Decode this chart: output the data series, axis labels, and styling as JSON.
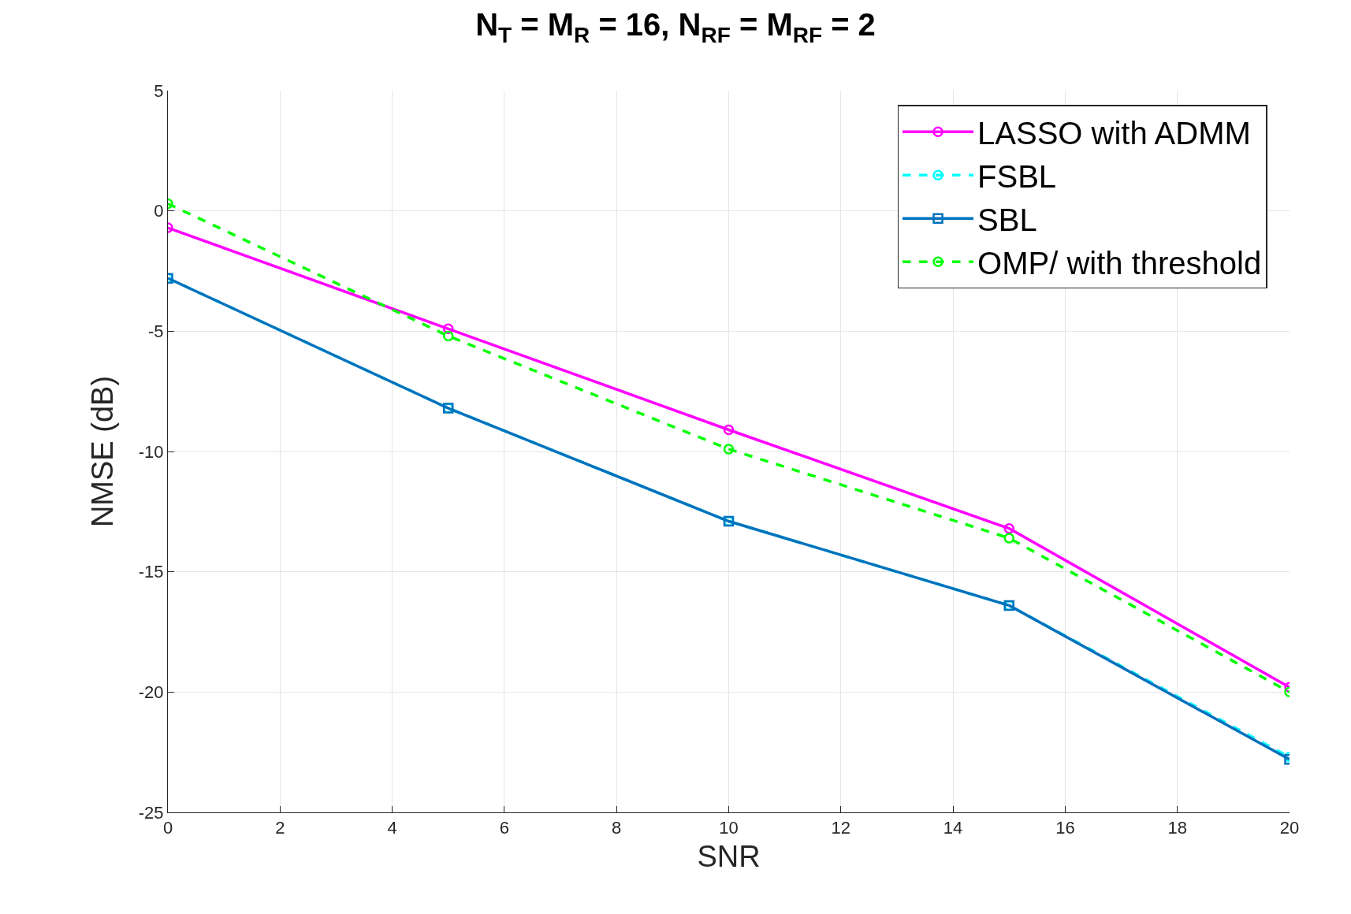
{
  "chart_data": {
    "type": "line",
    "title": "N$_{T}$ = M$_{R}$ = 16, N$_{RF}$ = M$_{RF}$ = 2",
    "xlabel": "SNR",
    "ylabel": "NMSE (dB)",
    "x": [
      0,
      5,
      10,
      15,
      20
    ],
    "series": [
      {
        "name": "LASSO with ADMM",
        "color": "#ff00ff",
        "marker": "circle",
        "line_style": "solid",
        "values": [
          -0.7,
          -4.9,
          -9.1,
          -13.2,
          -19.8
        ]
      },
      {
        "name": "FSBL",
        "color": "#00ffff",
        "marker": "circle",
        "line_style": "dashed",
        "values": [
          -2.8,
          -8.2,
          -12.9,
          -16.4,
          -22.7
        ]
      },
      {
        "name": "SBL",
        "color": "#0072bd",
        "marker": "square",
        "line_style": "solid",
        "values": [
          -2.8,
          -8.2,
          -12.9,
          -16.4,
          -22.8
        ]
      },
      {
        "name": "OMP/ with threshold",
        "color": "#00ff00",
        "marker": "circle",
        "line_style": "dashed",
        "values": [
          0.3,
          -5.2,
          -9.9,
          -13.6,
          -20.0
        ]
      }
    ],
    "xlim": [
      0,
      20
    ],
    "xticks": [
      0,
      2,
      4,
      6,
      8,
      10,
      12,
      14,
      16,
      18,
      20
    ],
    "ylim": [
      -25,
      5
    ],
    "yticks": [
      -25,
      -20,
      -15,
      -10,
      -5,
      0,
      5
    ],
    "grid": true,
    "legend": "top right"
  }
}
